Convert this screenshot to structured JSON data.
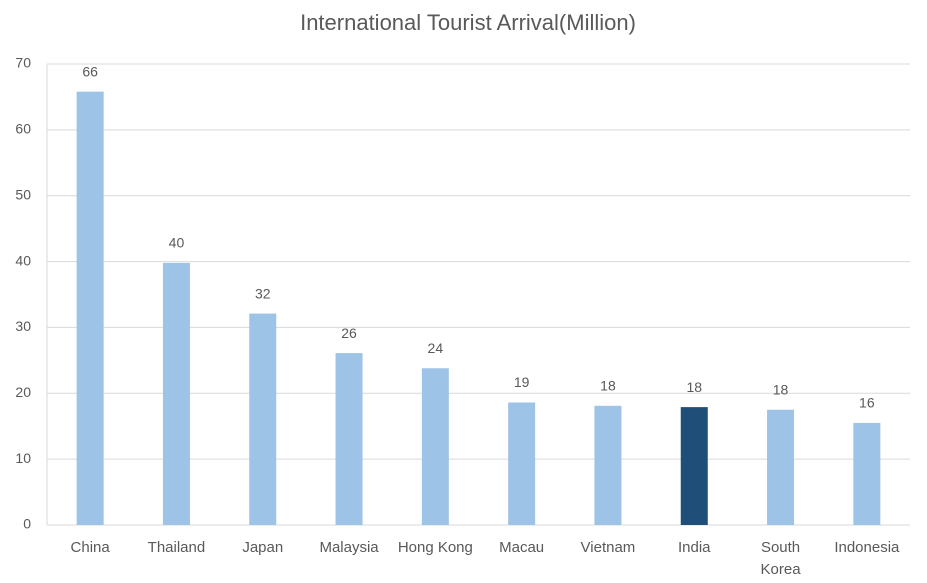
{
  "chart_data": {
    "type": "bar",
    "title": "International Tourist Arrival(Million)",
    "categories": [
      "China",
      "Thailand",
      "Japan",
      "Malaysia",
      "Hong Kong",
      "Macau",
      "Vietnam",
      "India",
      "South Korea",
      "Indonesia"
    ],
    "values": [
      65.8,
      39.8,
      32.1,
      26.1,
      23.8,
      18.6,
      18.1,
      17.9,
      17.5,
      15.5
    ],
    "value_labels": [
      "66",
      "40",
      "32",
      "26",
      "24",
      "19",
      "18",
      "18",
      "18",
      "16"
    ],
    "colors": [
      "#9dc3e6",
      "#9dc3e6",
      "#9dc3e6",
      "#9dc3e6",
      "#9dc3e6",
      "#9dc3e6",
      "#9dc3e6",
      "#1f4e79",
      "#9dc3e6",
      "#9dc3e6"
    ],
    "ylim": [
      0,
      70
    ],
    "yticks": [
      0,
      10,
      20,
      30,
      40,
      50,
      60,
      70
    ],
    "grid": true
  }
}
